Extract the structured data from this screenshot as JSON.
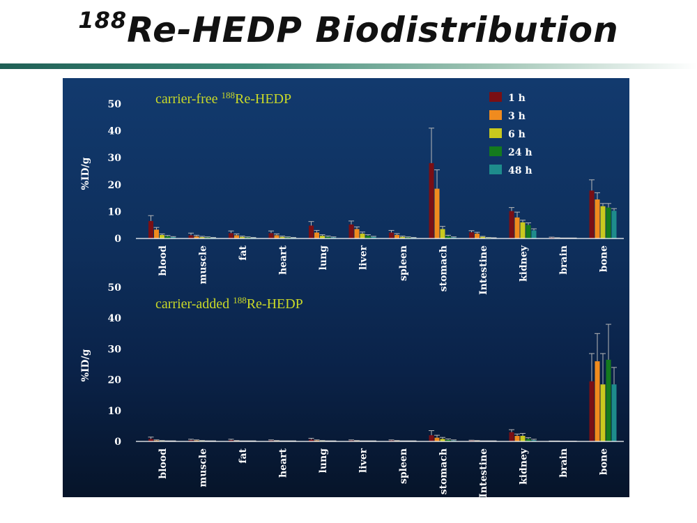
{
  "slide": {
    "title_sup": "188",
    "title_main": "Re-HEDP Biodistribution"
  },
  "chart_data": [
    {
      "type": "bar",
      "title_prefix": "carrier-free ",
      "title_sup": "188",
      "title_rest": "Re-HEDP",
      "ylabel": "%ID/g",
      "ylim": [
        0,
        50
      ],
      "yticks": [
        0,
        10,
        20,
        30,
        40,
        50
      ],
      "categories": [
        "blood",
        "muscle",
        "fat",
        "heart",
        "lung",
        "liver",
        "spleen",
        "stomach",
        "Intestine",
        "kidney",
        "brain",
        "bone"
      ],
      "legend_position": "top-right",
      "series": [
        {
          "name": "1 h",
          "color": "#7a0f14",
          "values": [
            6.5,
            1.2,
            2.0,
            2.0,
            4.8,
            5.2,
            2.2,
            28.0,
            2.3,
            10.2,
            0.3,
            17.8
          ],
          "errors": [
            2.0,
            0.8,
            0.8,
            0.8,
            1.5,
            1.3,
            0.8,
            13.0,
            0.6,
            1.3,
            0.2,
            4.0
          ]
        },
        {
          "name": "3 h",
          "color": "#f08b1e",
          "values": [
            3.3,
            0.8,
            1.2,
            1.2,
            2.2,
            3.5,
            1.3,
            18.5,
            1.8,
            7.8,
            0.2,
            14.5
          ],
          "errors": [
            0.8,
            0.4,
            0.5,
            0.5,
            0.8,
            0.8,
            0.5,
            7.0,
            0.5,
            2.0,
            0.1,
            2.5
          ]
        },
        {
          "name": "6 h",
          "color": "#c9c91e",
          "values": [
            1.3,
            0.5,
            0.6,
            0.6,
            1.0,
            1.8,
            0.6,
            3.5,
            0.6,
            6.0,
            0.1,
            12.0
          ],
          "errors": [
            0.4,
            0.3,
            0.3,
            0.3,
            0.4,
            0.6,
            0.3,
            1.0,
            0.2,
            0.8,
            0.1,
            1.0
          ]
        },
        {
          "name": "24 h",
          "color": "#147a1e",
          "values": [
            0.8,
            0.4,
            0.4,
            0.4,
            0.6,
            1.0,
            0.4,
            0.8,
            0.3,
            5.0,
            0.1,
            11.5
          ],
          "errors": [
            0.3,
            0.2,
            0.2,
            0.2,
            0.3,
            0.4,
            0.2,
            0.4,
            0.1,
            0.8,
            0.1,
            1.5
          ]
        },
        {
          "name": "48 h",
          "color": "#1e8c8c",
          "values": [
            0.5,
            0.3,
            0.3,
            0.3,
            0.4,
            0.6,
            0.3,
            0.4,
            0.2,
            3.0,
            0.1,
            10.3
          ],
          "errors": [
            0.2,
            0.1,
            0.1,
            0.1,
            0.2,
            0.2,
            0.1,
            0.2,
            0.1,
            0.6,
            0.1,
            0.8
          ]
        }
      ]
    },
    {
      "type": "bar",
      "title_prefix": "carrier-added ",
      "title_sup": "188",
      "title_rest": "Re-HEDP",
      "ylabel": "%ID/g",
      "ylim": [
        0,
        50
      ],
      "yticks": [
        0,
        10,
        20,
        30,
        40,
        50
      ],
      "categories": [
        "blood",
        "muscle",
        "fat",
        "heart",
        "lung",
        "liver",
        "spleen",
        "stomach",
        "Intestine",
        "kidney",
        "brain",
        "bone"
      ],
      "series": [
        {
          "name": "1 h",
          "color": "#7a0f14",
          "values": [
            0.8,
            0.4,
            0.4,
            0.3,
            0.6,
            0.3,
            0.3,
            2.0,
            0.3,
            3.0,
            0.1,
            19.5
          ],
          "errors": [
            0.6,
            0.3,
            0.3,
            0.2,
            0.4,
            0.2,
            0.2,
            1.5,
            0.1,
            0.8,
            0.05,
            9.0
          ]
        },
        {
          "name": "3 h",
          "color": "#f08b1e",
          "values": [
            0.3,
            0.3,
            0.2,
            0.2,
            0.3,
            0.2,
            0.2,
            1.2,
            0.2,
            1.8,
            0.1,
            26.0
          ],
          "errors": [
            0.2,
            0.2,
            0.1,
            0.1,
            0.2,
            0.1,
            0.1,
            0.8,
            0.1,
            0.6,
            0.05,
            9.0
          ]
        },
        {
          "name": "6 h",
          "color": "#c9c91e",
          "values": [
            0.2,
            0.2,
            0.1,
            0.1,
            0.2,
            0.1,
            0.1,
            0.8,
            0.1,
            1.8,
            0.05,
            18.5
          ],
          "errors": [
            0.1,
            0.1,
            0.1,
            0.1,
            0.1,
            0.1,
            0.1,
            0.5,
            0.1,
            0.8,
            0.05,
            10.0
          ]
        },
        {
          "name": "24 h",
          "color": "#147a1e",
          "values": [
            0.1,
            0.1,
            0.1,
            0.1,
            0.1,
            0.1,
            0.1,
            0.5,
            0.1,
            0.8,
            0.05,
            26.5
          ],
          "errors": [
            0.1,
            0.1,
            0.1,
            0.1,
            0.1,
            0.1,
            0.1,
            0.3,
            0.1,
            0.4,
            0.05,
            11.5
          ]
        },
        {
          "name": "48 h",
          "color": "#1e8c8c",
          "values": [
            0.1,
            0.1,
            0.1,
            0.1,
            0.1,
            0.1,
            0.1,
            0.3,
            0.1,
            0.4,
            0.05,
            18.5
          ],
          "errors": [
            0.1,
            0.1,
            0.1,
            0.1,
            0.1,
            0.1,
            0.1,
            0.2,
            0.1,
            0.3,
            0.05,
            5.5
          ]
        }
      ]
    }
  ]
}
